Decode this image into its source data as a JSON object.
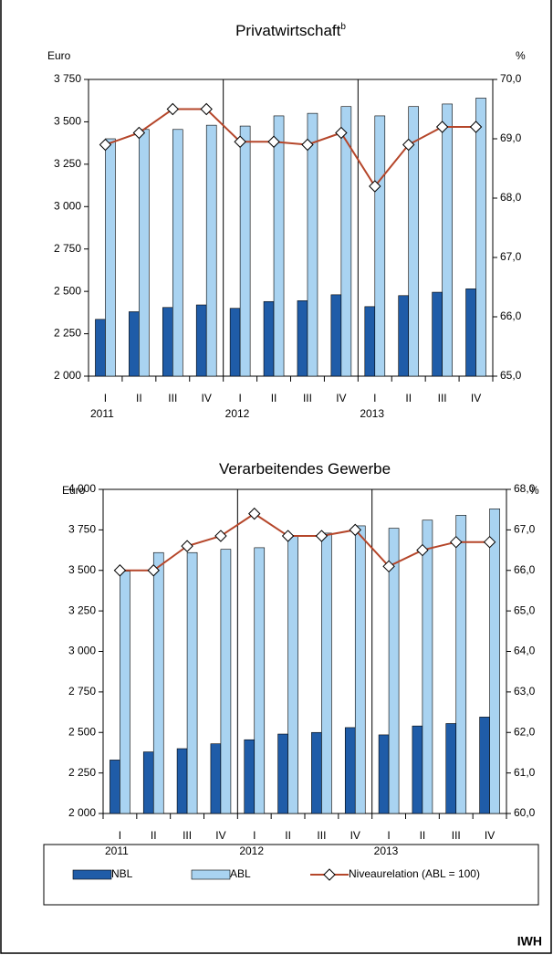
{
  "chart_data": [
    {
      "type": "bar",
      "title": "Privatwirtschaft",
      "title_superscript": "b",
      "y_axis_label": "Euro",
      "y2_axis_label": "%",
      "categories": [
        "I",
        "II",
        "III",
        "IV",
        "I",
        "II",
        "III",
        "IV",
        "I",
        "II",
        "III",
        "IV"
      ],
      "years": [
        "2011",
        "2012",
        "2013"
      ],
      "series": [
        {
          "name": "NBL",
          "type": "bar",
          "color": "#1f5ca8",
          "values": [
            2335,
            2380,
            2405,
            2420,
            2400,
            2440,
            2445,
            2480,
            2410,
            2475,
            2495,
            2515
          ]
        },
        {
          "name": "ABL",
          "type": "bar",
          "color": "#a9d3f1",
          "values": [
            3400,
            3455,
            3455,
            3480,
            3475,
            3535,
            3550,
            3590,
            3535,
            3590,
            3605,
            3640
          ]
        },
        {
          "name": "Niveaurelation (ABL = 100)",
          "type": "line",
          "axis": "y2",
          "color": "#b5462a",
          "values": [
            68.9,
            69.1,
            69.5,
            69.5,
            68.95,
            68.95,
            68.9,
            69.1,
            68.2,
            68.9,
            69.2,
            69.2
          ]
        }
      ],
      "ylim": [
        2000,
        3750
      ],
      "yticks": [
        {
          "value": 2000,
          "label": "2 000"
        },
        {
          "value": 2250,
          "label": "2 250"
        },
        {
          "value": 2500,
          "label": "2 500"
        },
        {
          "value": 2750,
          "label": "2 750"
        },
        {
          "value": 3000,
          "label": "3 000"
        },
        {
          "value": 3250,
          "label": "3 250"
        },
        {
          "value": 3500,
          "label": "3 500"
        },
        {
          "value": 3750,
          "label": "3 750"
        }
      ],
      "y2lim": [
        65,
        70
      ],
      "y2ticks": [
        {
          "value": 65,
          "label": "65,0"
        },
        {
          "value": 66,
          "label": "66,0"
        },
        {
          "value": 67,
          "label": "67,0"
        },
        {
          "value": 68,
          "label": "68,0"
        },
        {
          "value": 69,
          "label": "69,0"
        },
        {
          "value": 70,
          "label": "70,0"
        }
      ]
    },
    {
      "type": "bar",
      "title": "Verarbeitendes Gewerbe",
      "y_axis_label": "Euro",
      "y2_axis_label": "%",
      "categories": [
        "I",
        "II",
        "III",
        "IV",
        "I",
        "II",
        "III",
        "IV",
        "I",
        "II",
        "III",
        "IV"
      ],
      "years": [
        "2011",
        "2012",
        "2013"
      ],
      "series": [
        {
          "name": "NBL",
          "type": "bar",
          "color": "#1f5ca8",
          "values": [
            2330,
            2380,
            2400,
            2430,
            2455,
            2490,
            2500,
            2530,
            2485,
            2540,
            2555,
            2595
          ]
        },
        {
          "name": "ABL",
          "type": "bar",
          "color": "#a9d3f1",
          "values": [
            3495,
            3610,
            3610,
            3630,
            3640,
            3710,
            3730,
            3775,
            3760,
            3810,
            3840,
            3880
          ]
        },
        {
          "name": "Niveaurelation (ABL = 100)",
          "type": "line",
          "axis": "y2",
          "color": "#b5462a",
          "values": [
            66.0,
            66.0,
            66.6,
            66.85,
            67.4,
            66.85,
            66.85,
            67.0,
            66.1,
            66.5,
            66.7,
            66.7
          ]
        }
      ],
      "ylim": [
        2000,
        4000
      ],
      "yticks": [
        {
          "value": 2000,
          "label": "2 000"
        },
        {
          "value": 2250,
          "label": "2 250"
        },
        {
          "value": 2500,
          "label": "2 500"
        },
        {
          "value": 2750,
          "label": "2 750"
        },
        {
          "value": 3000,
          "label": "3 000"
        },
        {
          "value": 3250,
          "label": "3 250"
        },
        {
          "value": 3500,
          "label": "3 500"
        },
        {
          "value": 3750,
          "label": "3 750"
        },
        {
          "value": 4000,
          "label": "4 000"
        }
      ],
      "y2lim": [
        60,
        68
      ],
      "y2ticks": [
        {
          "value": 60,
          "label": "60,0"
        },
        {
          "value": 61,
          "label": "61,0"
        },
        {
          "value": 62,
          "label": "62,0"
        },
        {
          "value": 63,
          "label": "63,0"
        },
        {
          "value": 64,
          "label": "64,0"
        },
        {
          "value": 65,
          "label": "65,0"
        },
        {
          "value": 66,
          "label": "66,0"
        },
        {
          "value": 67,
          "label": "67,0"
        },
        {
          "value": 68,
          "label": "68,0"
        }
      ]
    }
  ],
  "source": "IWH"
}
